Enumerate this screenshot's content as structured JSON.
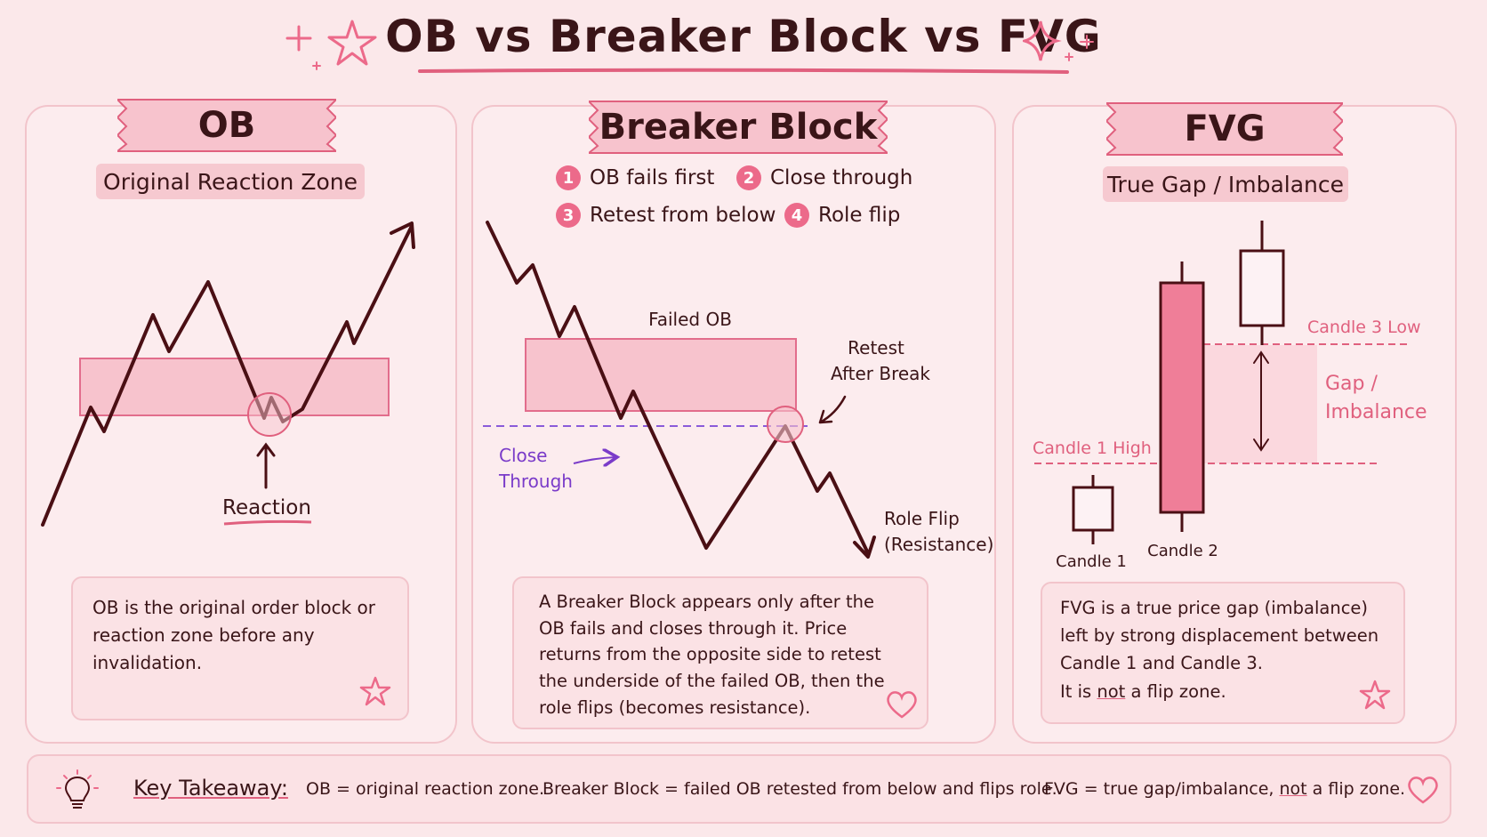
{
  "title": "OB vs Breaker Block vs FVG",
  "colors": {
    "background": "#fbe8ea",
    "accent_pink": "#e0607e",
    "zone_fill": "#f7c3cd",
    "line_dark": "#4a0f14",
    "purple": "#7a3bc9"
  },
  "ob_panel": {
    "title": "OB",
    "subtitle": "Original Reaction Zone",
    "labels": {
      "reaction": "Reaction"
    },
    "note": "OB is the original order block or reaction zone before any invalidation.",
    "icon": "star-icon"
  },
  "breaker_panel": {
    "title": "Breaker Block",
    "steps": [
      {
        "num": "1",
        "text": "OB fails first"
      },
      {
        "num": "2",
        "text": "Close through"
      },
      {
        "num": "3",
        "text": "Retest from below"
      },
      {
        "num": "4",
        "text": "Role flip"
      }
    ],
    "labels": {
      "failed_ob": "Failed OB",
      "retest_1": "Retest",
      "retest_2": "After Break",
      "close_1": "Close",
      "close_2": "Through",
      "role_flip_1": "Role Flip",
      "role_flip_2": "(Resistance)"
    },
    "note": "A Breaker Block appears only after the OB fails and closes through it. Price returns from the opposite side to retest the underside of the failed OB, then the role flips (becomes resistance).",
    "icon": "heart-icon"
  },
  "fvg_panel": {
    "title": "FVG",
    "subtitle": "True Gap / Imbalance",
    "labels": {
      "candle3_low": "Candle 3 Low",
      "candle1_high": "Candle 1 High",
      "gap_1": "Gap /",
      "gap_2": "Imbalance",
      "candle1": "Candle 1",
      "candle2": "Candle 2"
    },
    "note_lines": {
      "line1": "FVG is a true price gap (imbalance)",
      "line2": "left by strong displacement between",
      "line3": "Candle 1 and Candle 3.",
      "line4_a": "It is ",
      "line4_b": "not",
      "line4_c": " a flip zone."
    },
    "icon": "star-icon"
  },
  "takeaway": {
    "label": "Key Takeaway:",
    "ob": "OB = original reaction zone.",
    "breaker": "Breaker Block = failed OB retested from below and flips role.",
    "fvg_a": "FVG = true gap/imbalance, ",
    "fvg_b": "not",
    "fvg_c": " a flip zone.",
    "icon": "lightbulb-icon"
  }
}
